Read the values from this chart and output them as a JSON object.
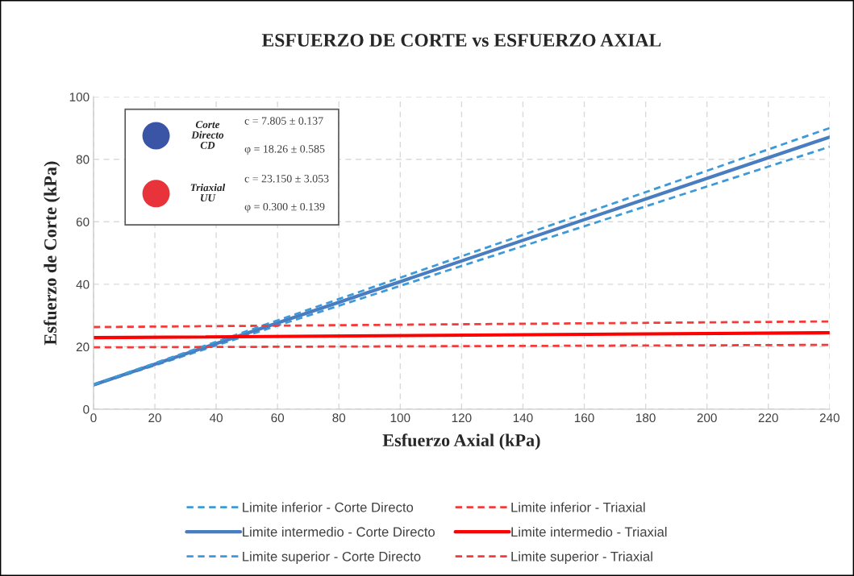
{
  "chart_data": {
    "type": "line",
    "title": "ESFUERZO DE CORTE vs ESFUERZO AXIAL",
    "xlabel": "Esfuerzo Axial (kPa)",
    "ylabel": "Esfuerzo de Corte (kPa)",
    "x": [
      0,
      240
    ],
    "series": [
      {
        "name": "Limite inferior - Corte Directo",
        "color": "#3d9ad9",
        "line_style": "dashed",
        "values": [
          7.7,
          84.0
        ]
      },
      {
        "name": "Limite intermedio - Corte Directo",
        "color": "#4a7cc0",
        "line_style": "solid",
        "values": [
          7.8,
          87.1
        ]
      },
      {
        "name": "Limite superior - Corte Directo",
        "color": "#3d9ad9",
        "line_style": "dashed",
        "values": [
          7.9,
          90.0
        ]
      },
      {
        "name": "Limite inferior - Triaxial",
        "color": "#f53a3a",
        "line_style": "dashed",
        "values": [
          19.8,
          20.6
        ]
      },
      {
        "name": "Limite intermedio - Triaxial",
        "color": "#ff0000",
        "line_style": "solid",
        "values": [
          22.9,
          24.5
        ]
      },
      {
        "name": "Limite superior - Triaxial",
        "color": "#f53a3a",
        "line_style": "dashed",
        "values": [
          26.3,
          28.1
        ]
      }
    ],
    "annotations": [
      "Corte\nDirecto\nCD",
      "c = 7.805 ± 0.137",
      "φ = 18.26 ± 0.585",
      "Triaxial\nUU",
      "c = 23.150 ± 3.053",
      "φ = 0.300 ± 0.139"
    ],
    "xlim": [
      0,
      240
    ],
    "xticks": [
      0,
      20,
      40,
      60,
      80,
      100,
      120,
      140,
      160,
      180,
      200,
      220,
      240
    ],
    "ylim": [
      0,
      100
    ],
    "yticks": [
      0,
      20,
      40,
      60,
      80,
      100
    ],
    "grid": true,
    "legend": "bottom",
    "marker": "none"
  }
}
